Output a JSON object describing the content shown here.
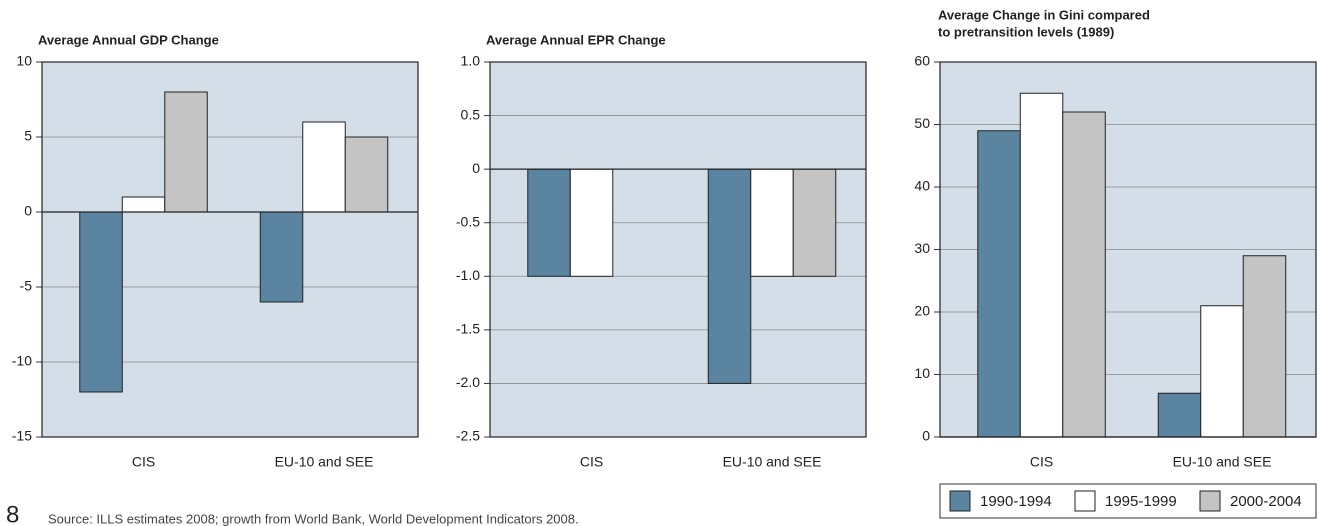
{
  "chart_data": [
    {
      "type": "bar",
      "title": "Average Annual GDP Change",
      "categories": [
        "CIS",
        "EU-10 and SEE"
      ],
      "series": [
        {
          "name": "1990-1994",
          "color": "#5b84a0",
          "values": [
            -12,
            -6
          ]
        },
        {
          "name": "1995-1999",
          "color": "#ffffff",
          "values": [
            1,
            6
          ]
        },
        {
          "name": "2000-2004",
          "color": "#c4c4c4",
          "values": [
            8,
            5
          ]
        }
      ],
      "ylim": [
        -15,
        10
      ],
      "yticks": [
        -15,
        -10,
        -5,
        0,
        5,
        10
      ],
      "grid": true
    },
    {
      "type": "bar",
      "title": "Average Annual EPR Change",
      "categories": [
        "CIS",
        "EU-10 and SEE"
      ],
      "series": [
        {
          "name": "1990-1994",
          "color": "#5b84a0",
          "values": [
            -1,
            -2
          ]
        },
        {
          "name": "1995-1999",
          "color": "#ffffff",
          "values": [
            -1,
            -1
          ]
        },
        {
          "name": "2000-2004",
          "color": "#c4c4c4",
          "values": [
            null,
            -1
          ]
        }
      ],
      "ylim": [
        -2.5,
        1
      ],
      "yticks": [
        -2.5,
        {
          "value": -2,
          "label": "-2.0"
        },
        -1.5,
        {
          "value": -1,
          "label": "-1.0"
        },
        -0.5,
        0,
        0.5,
        {
          "value": 1,
          "label": "1.0"
        }
      ],
      "grid": true
    },
    {
      "type": "bar",
      "title": [
        "Average Change in Gini compared",
        "to pretransition levels (1989)"
      ],
      "categories": [
        "CIS",
        "EU-10 and SEE"
      ],
      "series": [
        {
          "name": "1990-1994",
          "color": "#5b84a0",
          "values": [
            49,
            7
          ]
        },
        {
          "name": "1995-1999",
          "color": "#ffffff",
          "values": [
            55,
            21
          ]
        },
        {
          "name": "2000-2004",
          "color": "#c4c4c4",
          "values": [
            52,
            29
          ]
        }
      ],
      "ylim": [
        0,
        60
      ],
      "yticks": [
        0,
        10,
        20,
        30,
        40,
        50,
        60
      ],
      "grid": true,
      "legend": "bottom"
    }
  ],
  "page_number": "8",
  "source": "Source: ILLS estimates 2008; growth from World Bank, World Development Indicators 2008."
}
